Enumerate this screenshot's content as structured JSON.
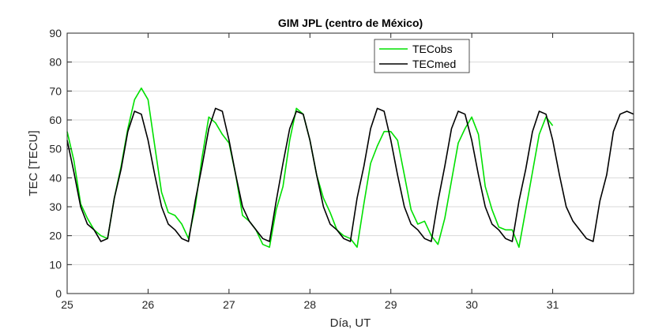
{
  "chart_data": {
    "type": "line",
    "title": "GIM JPL (centro de México)",
    "xlabel": "Día, UT",
    "ylabel": "TEC [TECU]",
    "xlim": [
      25,
      32
    ],
    "ylim": [
      0,
      90
    ],
    "xticks": [
      25,
      26,
      27,
      28,
      29,
      30,
      31
    ],
    "yticks": [
      0,
      10,
      20,
      30,
      40,
      50,
      60,
      70,
      80,
      90
    ],
    "grid": "horizontal",
    "legend_position": "top-right",
    "series": [
      {
        "name": "TECobs",
        "color": "#00e000",
        "x": [
          25.0,
          25.083,
          25.167,
          25.25,
          25.333,
          25.417,
          25.5,
          25.583,
          25.667,
          25.75,
          25.833,
          25.917,
          26.0,
          26.083,
          26.167,
          26.25,
          26.333,
          26.417,
          26.5,
          26.583,
          26.667,
          26.75,
          26.833,
          26.917,
          27.0,
          27.083,
          27.167,
          27.25,
          27.333,
          27.417,
          27.5,
          27.583,
          27.667,
          27.75,
          27.833,
          27.917,
          28.0,
          28.083,
          28.167,
          28.25,
          28.333,
          28.417,
          28.5,
          28.583,
          28.667,
          28.75,
          28.833,
          28.917,
          29.0,
          29.083,
          29.167,
          29.25,
          29.333,
          29.417,
          29.5,
          29.583,
          29.667,
          29.75,
          29.833,
          29.917,
          30.0,
          30.083,
          30.167,
          30.25,
          30.333,
          30.417,
          30.5,
          30.583,
          30.667,
          30.75,
          30.833,
          30.917,
          31.0
        ],
        "y": [
          56,
          46,
          31,
          26,
          22,
          20,
          19,
          33,
          44,
          57,
          67,
          71,
          67,
          51,
          35,
          28,
          27,
          24,
          19,
          30,
          47,
          61,
          59,
          55,
          52,
          41,
          27,
          25,
          22,
          17,
          16,
          29,
          37,
          53,
          64,
          62,
          53,
          41,
          33,
          28,
          22,
          20,
          19,
          16,
          31,
          45,
          51,
          56,
          56,
          53,
          41,
          29,
          24,
          25,
          20,
          17,
          26,
          39,
          52,
          57,
          61,
          55,
          37,
          29,
          23,
          22,
          22,
          16,
          29,
          42,
          55,
          61,
          58
        ]
      },
      {
        "name": "TECmed",
        "color": "#000000",
        "x": [
          25.0,
          25.083,
          25.167,
          25.25,
          25.333,
          25.417,
          25.5,
          25.583,
          25.667,
          25.75,
          25.833,
          25.917,
          26.0,
          26.083,
          26.167,
          26.25,
          26.333,
          26.417,
          26.5,
          26.583,
          26.667,
          26.75,
          26.833,
          26.917,
          27.0,
          27.083,
          27.167,
          27.25,
          27.333,
          27.417,
          27.5,
          27.583,
          27.667,
          27.75,
          27.833,
          27.917,
          28.0,
          28.083,
          28.167,
          28.25,
          28.333,
          28.417,
          28.5,
          28.583,
          28.667,
          28.75,
          28.833,
          28.917,
          29.0,
          29.083,
          29.167,
          29.25,
          29.333,
          29.417,
          29.5,
          29.583,
          29.667,
          29.75,
          29.833,
          29.917,
          30.0,
          30.083,
          30.167,
          30.25,
          30.333,
          30.417,
          30.5,
          30.583,
          30.667,
          30.75,
          30.833,
          30.917,
          31.0,
          31.083,
          31.167,
          31.25,
          31.333,
          31.417,
          31.5,
          31.583,
          31.667,
          31.75,
          31.833,
          31.917,
          32.0
        ],
        "y": [
          53,
          42,
          30,
          24,
          22,
          18,
          19,
          33,
          43,
          56,
          63,
          62,
          53,
          41,
          30,
          24,
          22,
          19,
          18,
          32,
          44,
          57,
          64,
          63,
          53,
          41,
          30,
          25,
          22,
          19,
          18,
          32,
          45,
          57,
          63,
          62,
          53,
          41,
          30,
          24,
          22,
          19,
          18,
          33,
          44,
          57,
          64,
          63,
          53,
          41,
          30,
          24,
          22,
          19,
          18,
          32,
          44,
          57,
          63,
          62,
          53,
          41,
          30,
          24,
          22,
          19,
          18,
          32,
          43,
          56,
          63,
          62,
          53,
          41,
          30,
          25,
          22,
          19,
          18,
          32,
          41,
          56,
          62,
          63,
          62
        ]
      }
    ]
  }
}
